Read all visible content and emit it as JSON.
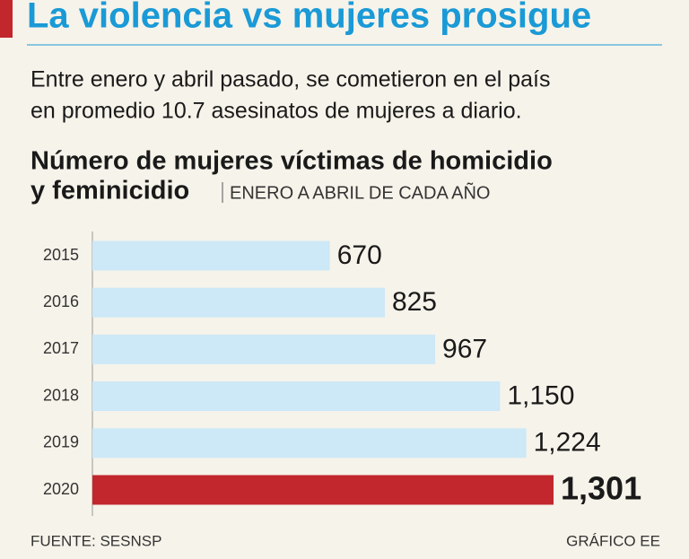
{
  "chart_data": {
    "type": "bar",
    "orientation": "horizontal",
    "headline": "La violencia vs mujeres prosigue",
    "subtitle": [
      "Entre enero y abril pasado, se cometieron en el país",
      "en promedio 10.7 asesinatos de mujeres a diario."
    ],
    "title": [
      "Número de mujeres víctimas de homicidio",
      "y feminicidio"
    ],
    "title_note": "ENERO A ABRIL DE CADA AÑO",
    "categories": [
      "2015",
      "2016",
      "2017",
      "2018",
      "2019",
      "2020"
    ],
    "values": [
      670,
      825,
      967,
      1150,
      1224,
      1301
    ],
    "value_labels": [
      "670",
      "825",
      "967",
      "1,150",
      "1,224",
      "1,301"
    ],
    "colors": [
      "#cde8f7",
      "#cde8f7",
      "#cde8f7",
      "#cde8f7",
      "#cde8f7",
      "#c1272d"
    ],
    "source": "FUENTE: SESNSP",
    "credit": "GRÁFICO EE"
  }
}
